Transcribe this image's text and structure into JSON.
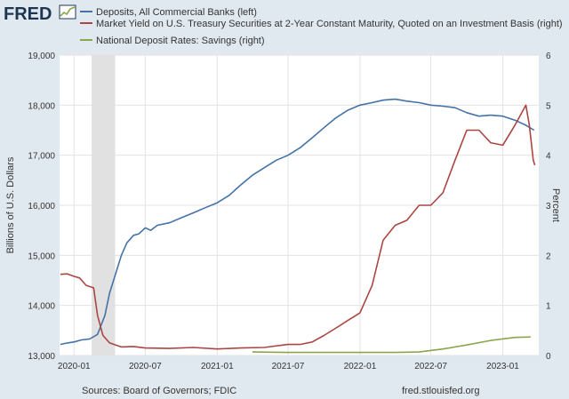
{
  "brand": {
    "logo_text": "FRED",
    "logo_icon": "line-chart-icon"
  },
  "legend": [
    {
      "label": "Deposits, All Commercial Banks (left)",
      "color": "#4572a7"
    },
    {
      "label": "Market Yield on U.S. Treasury Securities at 2-Year Constant Maturity, Quoted on an Investment Basis (right)",
      "color": "#aa4643"
    },
    {
      "label": "National Deposit Rates: Savings (right)",
      "color": "#89a54e"
    }
  ],
  "footer": {
    "source": "Sources: Board of Governors; FDIC",
    "site": "fred.stlouisfed.org"
  },
  "chart_data": {
    "type": "line",
    "xlabel": "",
    "ylabel_left": "Billions of U.S. Dollars",
    "ylabel_right": "Percent",
    "ylim_left": [
      13000,
      19000
    ],
    "ylim_right": [
      0,
      6
    ],
    "xlim": [
      "2019-11-25",
      "2023-04-03"
    ],
    "yticks_left": [
      "13,000",
      "14,000",
      "15,000",
      "16,000",
      "17,000",
      "18,000",
      "19,000"
    ],
    "yticks_right": [
      "0",
      "1",
      "2",
      "3",
      "4",
      "5",
      "6"
    ],
    "xticks": [
      "2020-01",
      "2020-07",
      "2021-01",
      "2021-07",
      "2022-01",
      "2022-07",
      "2023-01"
    ],
    "grid": true,
    "legend_position": "top",
    "recession_shading": [
      "2020-02-15",
      "2020-04-15"
    ],
    "series": [
      {
        "name": "Deposits, All Commercial Banks (left)",
        "axis": "left",
        "color": "#4572a7",
        "points": [
          [
            "2019-11-27",
            13220
          ],
          [
            "2019-12-15",
            13250
          ],
          [
            "2020-01-01",
            13270
          ],
          [
            "2020-01-20",
            13310
          ],
          [
            "2020-02-10",
            13330
          ],
          [
            "2020-03-01",
            13420
          ],
          [
            "2020-03-20",
            13800
          ],
          [
            "2020-04-01",
            14250
          ],
          [
            "2020-04-15",
            14600
          ],
          [
            "2020-05-01",
            15000
          ],
          [
            "2020-05-15",
            15250
          ],
          [
            "2020-06-01",
            15400
          ],
          [
            "2020-06-15",
            15430
          ],
          [
            "2020-07-01",
            15550
          ],
          [
            "2020-07-15",
            15500
          ],
          [
            "2020-08-01",
            15600
          ],
          [
            "2020-09-01",
            15650
          ],
          [
            "2020-10-01",
            15750
          ],
          [
            "2020-11-01",
            15850
          ],
          [
            "2020-12-01",
            15950
          ],
          [
            "2021-01-01",
            16050
          ],
          [
            "2021-02-01",
            16200
          ],
          [
            "2021-03-01",
            16400
          ],
          [
            "2021-04-01",
            16600
          ],
          [
            "2021-05-01",
            16750
          ],
          [
            "2021-06-01",
            16900
          ],
          [
            "2021-07-01",
            17000
          ],
          [
            "2021-08-01",
            17150
          ],
          [
            "2021-09-01",
            17350
          ],
          [
            "2021-10-01",
            17550
          ],
          [
            "2021-11-01",
            17750
          ],
          [
            "2021-12-01",
            17900
          ],
          [
            "2022-01-01",
            18000
          ],
          [
            "2022-02-01",
            18050
          ],
          [
            "2022-03-01",
            18100
          ],
          [
            "2022-04-01",
            18120
          ],
          [
            "2022-05-01",
            18080
          ],
          [
            "2022-06-01",
            18050
          ],
          [
            "2022-07-01",
            18000
          ],
          [
            "2022-08-01",
            17980
          ],
          [
            "2022-09-01",
            17950
          ],
          [
            "2022-10-01",
            17850
          ],
          [
            "2022-11-01",
            17780
          ],
          [
            "2022-12-01",
            17800
          ],
          [
            "2023-01-01",
            17780
          ],
          [
            "2023-02-01",
            17700
          ],
          [
            "2023-03-01",
            17600
          ],
          [
            "2023-03-22",
            17500
          ]
        ]
      },
      {
        "name": "Market Yield on U.S. Treasury Securities at 2-Year Constant Maturity, Quoted on an Investment Basis (right)",
        "axis": "right",
        "color": "#aa4643",
        "points": [
          [
            "2019-11-27",
            1.62
          ],
          [
            "2019-12-15",
            1.63
          ],
          [
            "2020-01-01",
            1.58
          ],
          [
            "2020-01-15",
            1.55
          ],
          [
            "2020-02-01",
            1.4
          ],
          [
            "2020-02-20",
            1.35
          ],
          [
            "2020-03-01",
            0.8
          ],
          [
            "2020-03-15",
            0.4
          ],
          [
            "2020-04-01",
            0.25
          ],
          [
            "2020-05-01",
            0.17
          ],
          [
            "2020-06-01",
            0.18
          ],
          [
            "2020-07-01",
            0.15
          ],
          [
            "2020-09-01",
            0.14
          ],
          [
            "2020-11-01",
            0.16
          ],
          [
            "2021-01-01",
            0.13
          ],
          [
            "2021-03-01",
            0.15
          ],
          [
            "2021-05-01",
            0.16
          ],
          [
            "2021-07-01",
            0.22
          ],
          [
            "2021-08-01",
            0.22
          ],
          [
            "2021-09-01",
            0.27
          ],
          [
            "2021-10-01",
            0.4
          ],
          [
            "2021-11-01",
            0.55
          ],
          [
            "2021-12-01",
            0.7
          ],
          [
            "2022-01-01",
            0.85
          ],
          [
            "2022-02-01",
            1.4
          ],
          [
            "2022-03-01",
            2.3
          ],
          [
            "2022-04-01",
            2.6
          ],
          [
            "2022-05-01",
            2.7
          ],
          [
            "2022-06-01",
            3.0
          ],
          [
            "2022-07-01",
            3.0
          ],
          [
            "2022-08-01",
            3.25
          ],
          [
            "2022-09-01",
            3.9
          ],
          [
            "2022-10-01",
            4.5
          ],
          [
            "2022-11-01",
            4.5
          ],
          [
            "2022-12-01",
            4.25
          ],
          [
            "2023-01-01",
            4.2
          ],
          [
            "2023-02-01",
            4.6
          ],
          [
            "2023-03-01",
            5.0
          ],
          [
            "2023-03-10",
            4.6
          ],
          [
            "2023-03-20",
            3.9
          ],
          [
            "2023-03-24",
            3.8
          ]
        ]
      },
      {
        "name": "National Deposit Rates: Savings (right)",
        "axis": "right",
        "color": "#89a54e",
        "points": [
          [
            "2021-04-01",
            0.07
          ],
          [
            "2021-07-01",
            0.06
          ],
          [
            "2021-10-01",
            0.06
          ],
          [
            "2022-01-01",
            0.06
          ],
          [
            "2022-04-01",
            0.06
          ],
          [
            "2022-06-01",
            0.07
          ],
          [
            "2022-08-01",
            0.13
          ],
          [
            "2022-10-01",
            0.21
          ],
          [
            "2022-12-01",
            0.3
          ],
          [
            "2023-02-01",
            0.36
          ],
          [
            "2023-03-13",
            0.37
          ]
        ]
      }
    ]
  }
}
